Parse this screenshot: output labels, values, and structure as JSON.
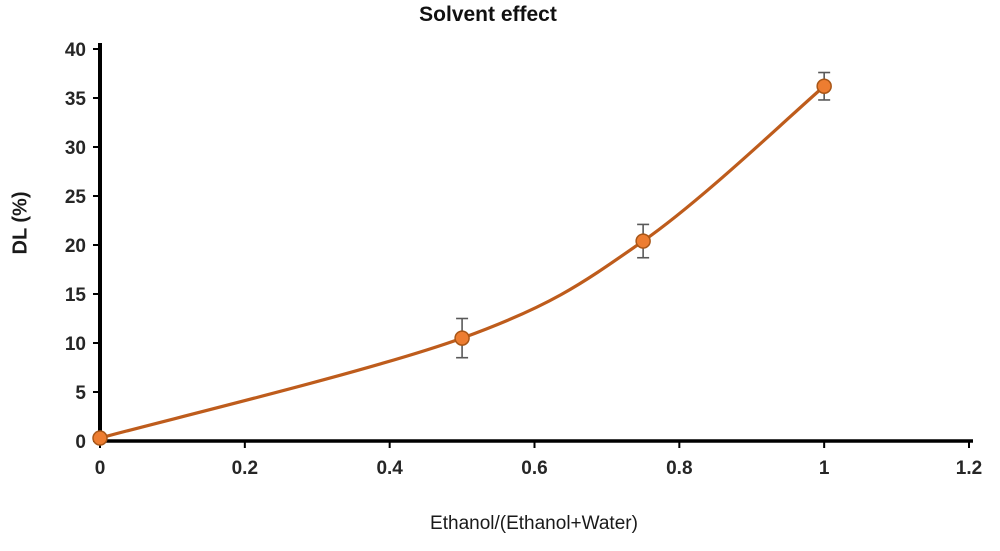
{
  "chart_data": {
    "type": "line",
    "title": "Solvent effect",
    "xlabel": "Ethanol/(Ethanol+Water)",
    "ylabel": "DL (%)",
    "x": [
      0,
      0.5,
      0.75,
      1
    ],
    "y": [
      0.3,
      10.5,
      20.4,
      36.2
    ],
    "yerr": [
      0,
      2.0,
      1.7,
      1.4
    ],
    "xlim": [
      0,
      1.2
    ],
    "ylim": [
      0,
      40
    ],
    "xticks": [
      "0",
      "0.2",
      "0.4",
      "0.6",
      "0.8",
      "1",
      "1.2"
    ],
    "yticks": [
      "0",
      "5",
      "10",
      "15",
      "20",
      "25",
      "30",
      "35",
      "40"
    ],
    "grid": false,
    "legend": "none",
    "marker": "circle",
    "colors": {
      "line": "#BE5C1C",
      "marker_fill": "#ED7D31",
      "marker_stroke": "#A85617",
      "error": "#595959",
      "axis": "#000000",
      "text": "#262626"
    }
  }
}
